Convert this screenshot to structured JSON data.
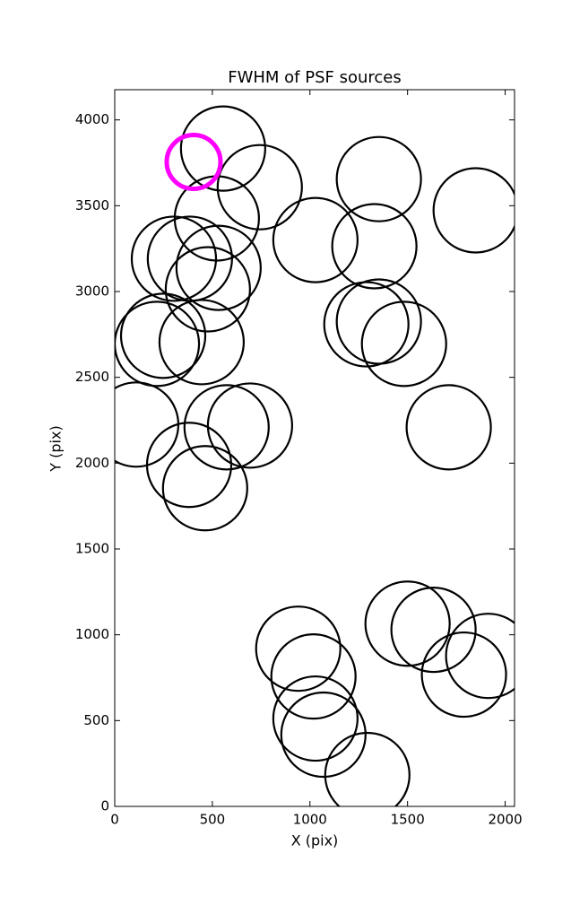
{
  "chart_data": {
    "type": "scatter",
    "title": "FWHM of PSF sources",
    "x_label": "X (pix)",
    "y_label": "Y (pix)",
    "xlim": [
      0,
      2048
    ],
    "ylim": [
      0,
      4176
    ],
    "xticks": [
      0,
      500,
      1000,
      1500,
      2000
    ],
    "yticks": [
      0,
      500,
      1000,
      1500,
      2000,
      2500,
      3000,
      3500,
      4000
    ],
    "series": [
      {
        "color": "#000000",
        "x": [
          555,
          743,
          523,
          1353,
          1849,
          1028,
          1330,
          303,
          385,
          532,
          477,
          248,
          216,
          445,
          1289,
          1353,
          1482,
          110,
          1711,
          573,
          693,
          381,
          463,
          940,
          1018,
          1500,
          1633,
          1913,
          1789,
          1028,
          1069,
          1294
        ],
        "values": [
          3833,
          3608,
          3426,
          3655,
          3473,
          3300,
          3264,
          3191,
          3191,
          3138,
          3013,
          2742,
          2695,
          2705,
          2809,
          2825,
          2695,
          2225,
          2209,
          2209,
          2219,
          1990,
          1854,
          919,
          757,
          1065,
          1029,
          877,
          768,
          512,
          418,
          183
        ]
      },
      {
        "color": "#ff00ff",
        "x": [
          404
        ],
        "values": [
          3755
        ]
      }
    ]
  }
}
